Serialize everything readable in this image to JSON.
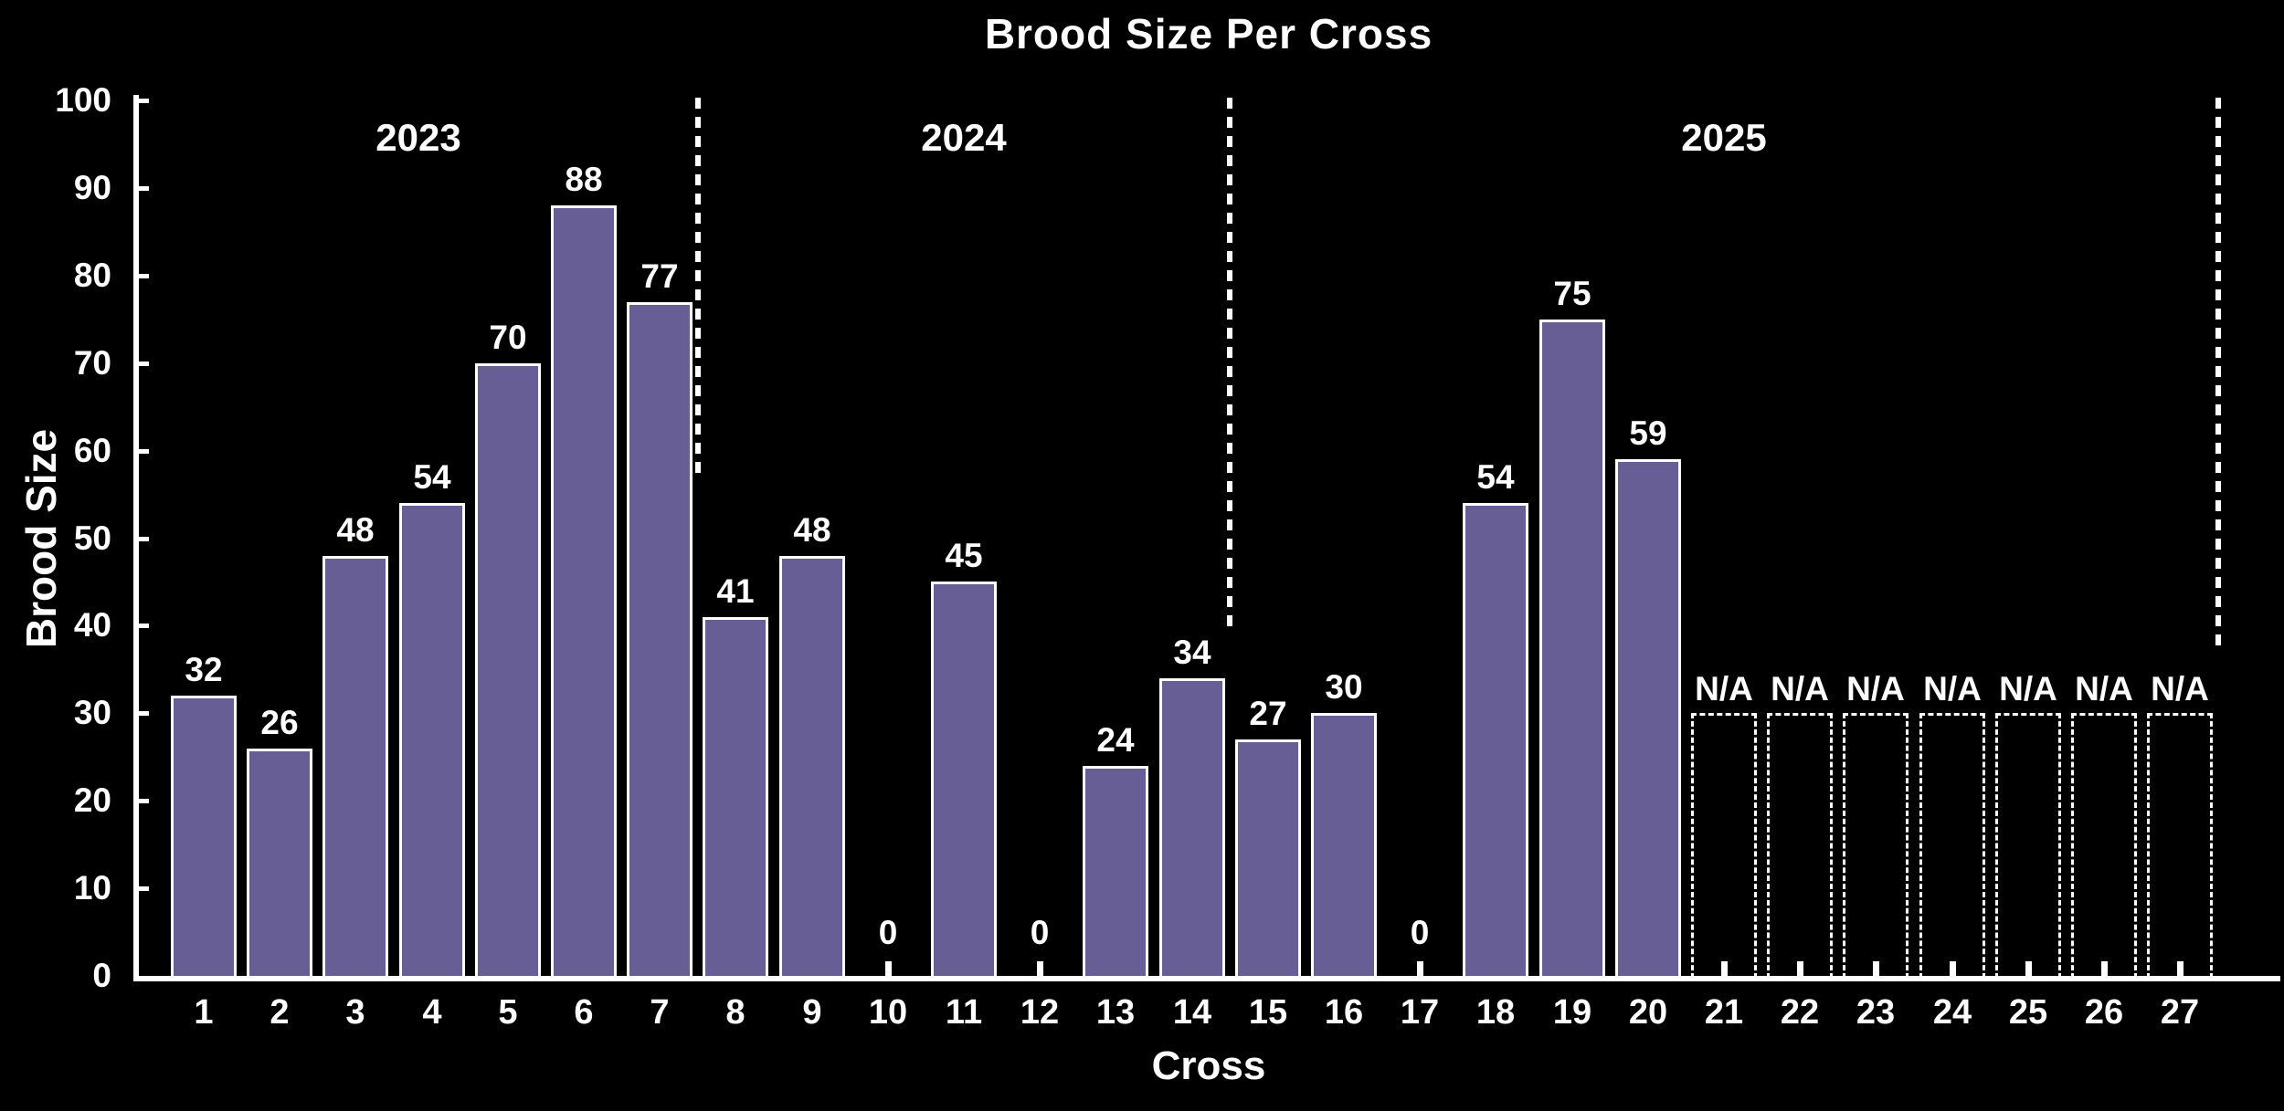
{
  "chart_data": {
    "type": "bar",
    "title": "Brood Size Per Cross",
    "xlabel": "Cross",
    "ylabel": "Brood Size",
    "ylim": [
      0,
      100
    ],
    "ytick_step": 10,
    "ytick_labels": [
      "0",
      "10",
      "20",
      "30",
      "40",
      "50",
      "60",
      "70",
      "80",
      "90",
      "100"
    ],
    "categories": [
      "1",
      "2",
      "3",
      "4",
      "5",
      "6",
      "7",
      "8",
      "9",
      "10",
      "11",
      "12",
      "13",
      "14",
      "15",
      "16",
      "17",
      "18",
      "19",
      "20",
      "21",
      "22",
      "23",
      "24",
      "25",
      "26",
      "27"
    ],
    "values": [
      32,
      26,
      48,
      54,
      70,
      88,
      77,
      41,
      48,
      0,
      45,
      0,
      24,
      34,
      27,
      30,
      0,
      54,
      75,
      59,
      null,
      null,
      null,
      null,
      null,
      null,
      null
    ],
    "na_label": "N/A",
    "na_bar_top_value": 30,
    "year_sections": [
      {
        "label": "2023",
        "first_cross": 1,
        "last_cross": 7,
        "divider_end_value": 57
      },
      {
        "label": "2024",
        "first_cross": 8,
        "last_cross": 14,
        "divider_end_value": 40
      },
      {
        "label": "2025",
        "first_cross": 15,
        "last_cross": 27,
        "divider_end_value": 38
      }
    ],
    "grid": false,
    "legend_position": "none",
    "colors": {
      "background": "#000000",
      "bar_fill": "#665e94",
      "bar_edge": "#ffffff",
      "na_box_edge": "#ffffff",
      "axis": "#ffffff",
      "text": "#ffffff",
      "divider": "#ffffff"
    }
  }
}
